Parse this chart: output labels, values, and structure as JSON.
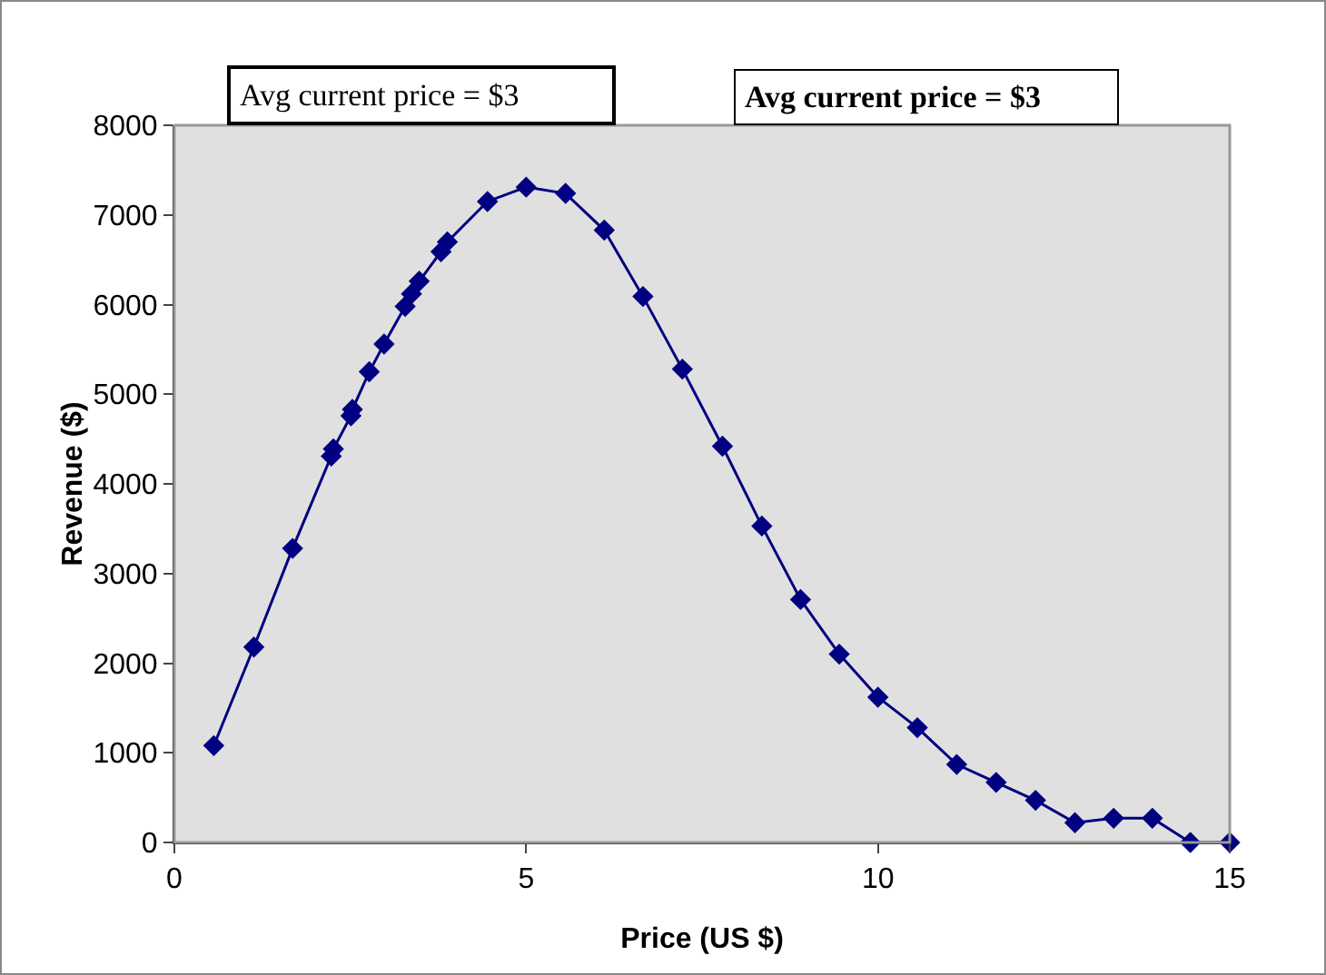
{
  "chart_data": {
    "type": "line",
    "xlabel": "Price (US $)",
    "ylabel": "Revenue ($)",
    "annotations": [
      "Avg current price = $3",
      "Avg current price = $3"
    ],
    "x": [
      0.56,
      1.13,
      1.68,
      2.23,
      2.26,
      2.51,
      2.53,
      2.77,
      2.98,
      3.28,
      3.37,
      3.48,
      3.79,
      3.88,
      4.45,
      5.0,
      5.56,
      6.11,
      6.66,
      7.22,
      7.79,
      8.35,
      8.9,
      9.45,
      10.0,
      10.56,
      11.12,
      11.68,
      12.24,
      12.8,
      13.35,
      13.9,
      14.44,
      15.0
    ],
    "series": [
      {
        "color": "#000080",
        "values": [
          1080,
          2180,
          3280,
          4310,
          4390,
          4760,
          4830,
          5250,
          5560,
          5980,
          6120,
          6260,
          6590,
          6700,
          7150,
          7310,
          7240,
          6830,
          6090,
          5280,
          4420,
          3530,
          2710,
          2100,
          1620,
          1280,
          870,
          670,
          470,
          220,
          270,
          270,
          0,
          0
        ]
      }
    ],
    "xlim": [
      0,
      15
    ],
    "xticks": [
      0,
      5,
      10,
      15
    ],
    "ylim": [
      0,
      8000
    ],
    "yticks": [
      0,
      1000,
      2000,
      3000,
      4000,
      5000,
      6000,
      7000,
      8000
    ],
    "grid": false,
    "marker": "diamond",
    "line_style": "solid"
  }
}
